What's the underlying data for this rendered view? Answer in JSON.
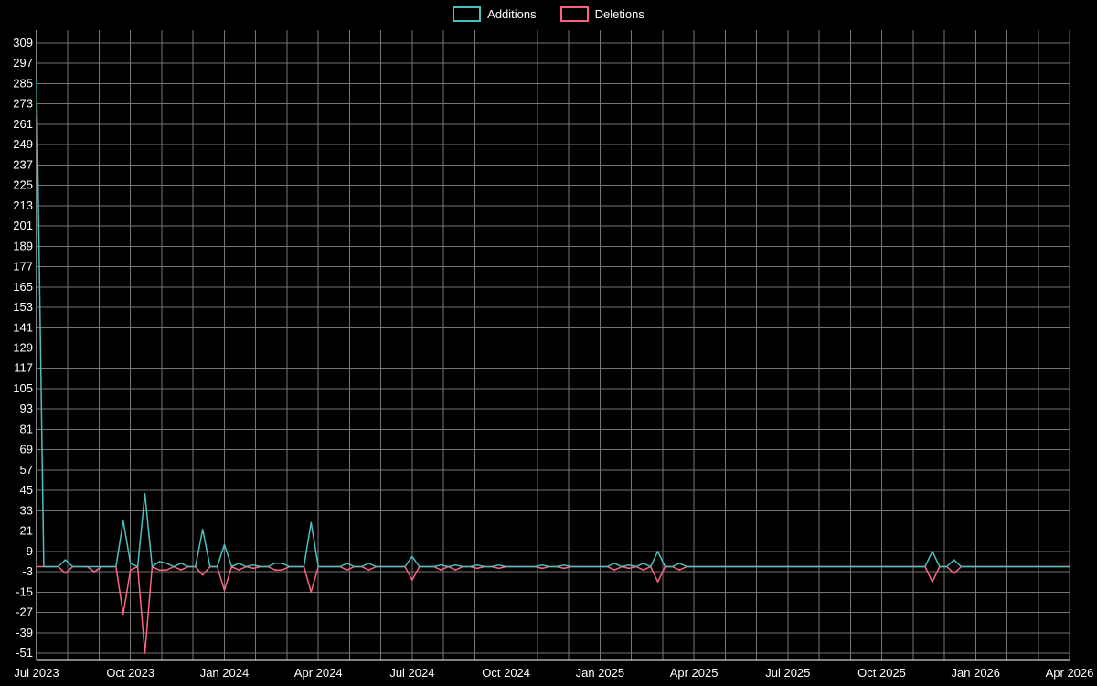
{
  "chart_data": {
    "type": "line",
    "title": "",
    "legend_position": "top-center",
    "grid": true,
    "background": "#000000",
    "colors": {
      "axis": "#ffffff",
      "grid": "#757575",
      "text": "#ffffff"
    },
    "x_axis": {
      "month_span": 33,
      "label_every_months": 3,
      "tick_labels": [
        "Jul 2023",
        "Oct 2023",
        "Jan 2024",
        "Apr 2024",
        "Jul 2024",
        "Oct 2024",
        "Jan 2025",
        "Apr 2025",
        "Jul 2025",
        "Oct 2025",
        "Jan 2026",
        "Apr 2026"
      ]
    },
    "y_axis": {
      "min": -51,
      "max": 309,
      "tick_step": 12,
      "tick_labels": [
        "309",
        "297",
        "285",
        "273",
        "261",
        "249",
        "237",
        "225",
        "213",
        "201",
        "189",
        "177",
        "165",
        "153",
        "141",
        "129",
        "117",
        "105",
        "93",
        "81",
        "69",
        "57",
        "45",
        "33",
        "21",
        "9",
        "-3",
        "-15",
        "-27",
        "-39",
        "-51"
      ]
    },
    "weeks_total": 144,
    "series": [
      {
        "name": "Additions",
        "color": "#4bc0c0",
        "default": 0,
        "points": {
          "0": 287,
          "4": 4,
          "12": 27,
          "13": 2,
          "15": 43,
          "17": 3,
          "18": 2,
          "20": 2,
          "23": 22,
          "26": 13,
          "28": 2,
          "30": 1,
          "33": 2,
          "34": 2,
          "38": 26,
          "43": 2,
          "46": 2,
          "52": 6,
          "56": 1,
          "58": 1,
          "61": 1,
          "64": 1,
          "70": 1,
          "73": 1,
          "80": 2,
          "82": 1,
          "84": 2,
          "86": 9,
          "89": 2,
          "124": 9,
          "127": 4
        }
      },
      {
        "name": "Deletions",
        "color": "#ff6384",
        "default": 0,
        "points": {
          "4": -4,
          "8": -3,
          "12": -28,
          "13": -2,
          "15": -51,
          "17": -2,
          "18": -2,
          "20": -2,
          "23": -5,
          "26": -14,
          "28": -2,
          "30": -1,
          "33": -2,
          "34": -2,
          "38": -15,
          "43": -2,
          "46": -2,
          "52": -8,
          "56": -2,
          "58": -2,
          "61": -1,
          "64": -1,
          "70": -1,
          "73": -1,
          "80": -2,
          "82": -1,
          "84": -2,
          "86": -9,
          "89": -2,
          "124": -9,
          "127": -4
        }
      }
    ]
  }
}
